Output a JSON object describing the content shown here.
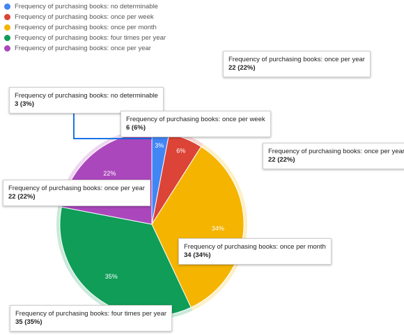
{
  "chart_data": {
    "type": "pie",
    "categories": [
      "Frequency of purchasing books: no determinable",
      "Frequency of purchasing books: once per week",
      "Frequency of purchasing books: once per month",
      "Frequency of purchasing books: four times per year",
      "Frequency of purchasing books: once per year"
    ],
    "values": [
      3,
      6,
      34,
      35,
      22
    ],
    "percent_labels": [
      "3%",
      "6%",
      "34%",
      "35%",
      "22%"
    ],
    "colors": [
      "#4285f4",
      "#db4437",
      "#f4b400",
      "#0f9d58",
      "#ab47bc"
    ],
    "legend_position": "top-left"
  },
  "tooltips": [
    {
      "label": "Frequency of purchasing books: once per year",
      "value": "22 (22%)"
    },
    {
      "label": "Frequency of purchasing books: no determinable",
      "value": "3 (3%)"
    },
    {
      "label": "Frequency of purchasing books: once per week",
      "value": "6 (6%)"
    },
    {
      "label": "Frequency of purchasing books: once per year",
      "value": "22 (22%)"
    },
    {
      "label": "Frequency of purchasing books: once per year",
      "value": "22 (22%)"
    },
    {
      "label": "Frequency of purchasing books: once per month",
      "value": "34 (34%)"
    },
    {
      "label": "Frequency of purchasing books: four times per year",
      "value": "35 (35%)"
    }
  ]
}
